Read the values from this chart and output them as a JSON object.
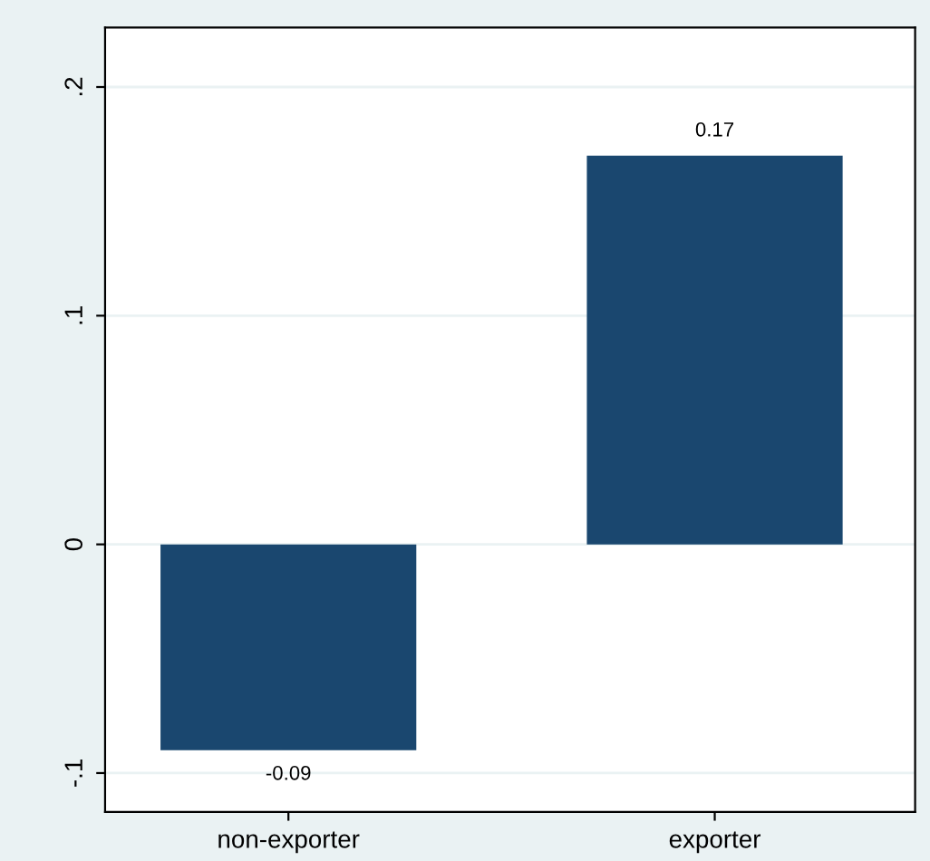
{
  "chart_data": {
    "type": "bar",
    "categories": [
      "non-exporter",
      "exporter"
    ],
    "values": [
      -0.09,
      0.17
    ],
    "color": "#1a476f",
    "data_labels": true,
    "ylim": [
      -0.117,
      0.226
    ],
    "yticks": [
      {
        "value": -0.1,
        "label": "-.1"
      },
      {
        "value": 0,
        "label": "0"
      },
      {
        "value": 0.1,
        "label": ".1"
      },
      {
        "value": 0.2,
        "label": ".2"
      }
    ],
    "grid": "y",
    "legend": false
  }
}
